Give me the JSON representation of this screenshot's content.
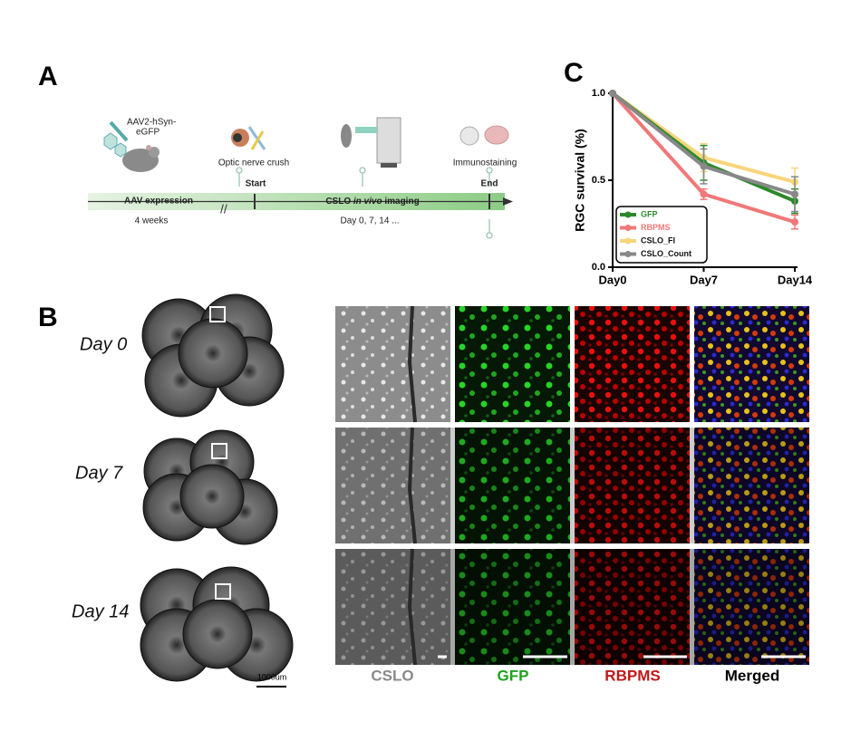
{
  "panel_labels": [
    "A",
    "B",
    "C"
  ],
  "timeline": {
    "virus_lines": [
      "AAV2-hSyn-",
      "eGFP"
    ],
    "crush": "Optic nerve crush",
    "stain": "Immunostaining",
    "phase": "AAV expression",
    "start": "Start",
    "imaging": [
      "CSLO",
      "in vivo",
      "imaging"
    ],
    "end": "End",
    "duration": "4 weeks",
    "days": "Day 0, 7, 14 ..."
  },
  "chart_data": {
    "type": "line",
    "ylabel": "RGC survival (%)",
    "categories": [
      "Day0",
      "Day7",
      "Day14"
    ],
    "ylim": [
      0,
      1
    ],
    "yticks": [
      {
        "value": 0,
        "label": "0.0"
      },
      {
        "value": 0.5,
        "label": "0.5"
      },
      {
        "value": 1,
        "label": "1.0"
      }
    ],
    "legend": "lower left",
    "series": [
      {
        "name": "GFP",
        "color": "#2a8a2a",
        "values": [
          1,
          0.6,
          0.38
        ],
        "errors": [
          null,
          0.1,
          0.07
        ]
      },
      {
        "name": "RBPMS",
        "color": "#f07878",
        "values": [
          1,
          0.42,
          0.26
        ],
        "errors": [
          null,
          0.03,
          0.04
        ]
      },
      {
        "name": "CSLO_FI",
        "color": "#f8d57a",
        "values": [
          1,
          0.63,
          0.49
        ],
        "errors": [
          null,
          0.08,
          0.08
        ]
      },
      {
        "name": "CSLO_Count",
        "color": "#888888",
        "values": [
          1,
          0.58,
          0.42
        ],
        "errors": [
          null,
          0.1,
          0.1
        ]
      }
    ]
  },
  "panel_b": {
    "days": [
      "Day 0",
      "Day 7",
      "Day 14"
    ],
    "scale": "1000um",
    "columns": [
      "CSLO",
      "GFP",
      "RBPMS",
      "Merged"
    ]
  }
}
